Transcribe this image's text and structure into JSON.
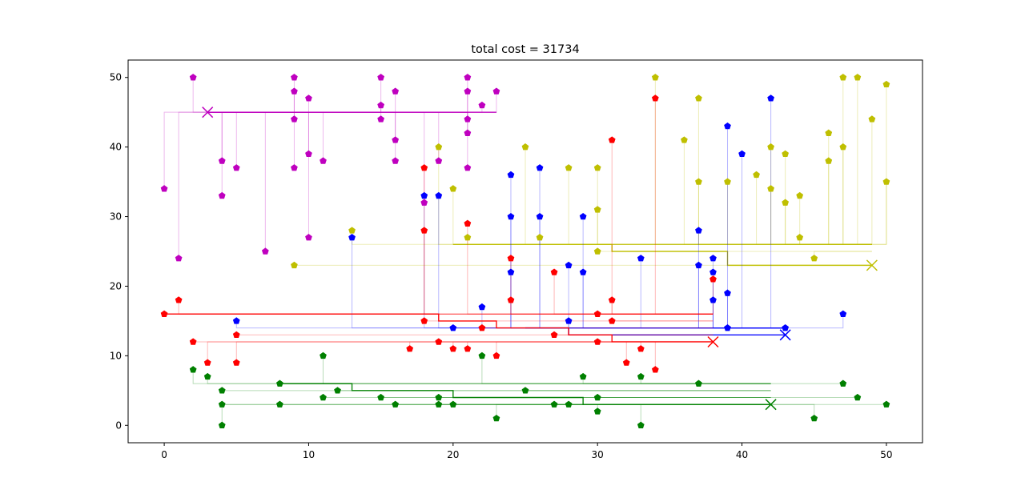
{
  "chart_data": {
    "type": "scatter",
    "title": "total cost = 31734",
    "xlabel": "",
    "ylabel": "",
    "xlim": [
      -2.5,
      52.5
    ],
    "ylim": [
      -2.5,
      52.5
    ],
    "xticks": [
      0,
      10,
      20,
      30,
      40,
      50
    ],
    "yticks": [
      0,
      10,
      20,
      30,
      40,
      50
    ],
    "grid": false,
    "series": [
      {
        "color": "#bf00bf",
        "hub": [
          3,
          45
        ],
        "points": [
          [
            0,
            34
          ],
          [
            1,
            24
          ],
          [
            2,
            50
          ],
          [
            4,
            38
          ],
          [
            4,
            33
          ],
          [
            5,
            37
          ],
          [
            7,
            25
          ],
          [
            9,
            50
          ],
          [
            9,
            48
          ],
          [
            9,
            44
          ],
          [
            9,
            37
          ],
          [
            10,
            47
          ],
          [
            10,
            39
          ],
          [
            10,
            27
          ],
          [
            11,
            38
          ],
          [
            15,
            50
          ],
          [
            15,
            46
          ],
          [
            15,
            44
          ],
          [
            16,
            48
          ],
          [
            16,
            41
          ],
          [
            16,
            38
          ],
          [
            18,
            32
          ],
          [
            19,
            38
          ],
          [
            21,
            50
          ],
          [
            21,
            48
          ],
          [
            21,
            44
          ],
          [
            21,
            42
          ],
          [
            21,
            37
          ],
          [
            22,
            46
          ],
          [
            23,
            48
          ]
        ],
        "trunk": [
          [
            3,
            45
          ],
          [
            23,
            45
          ]
        ]
      },
      {
        "color": "#bfbf00",
        "hub": [
          49,
          23
        ],
        "points": [
          [
            9,
            23
          ],
          [
            13,
            28
          ],
          [
            19,
            40
          ],
          [
            20,
            34
          ],
          [
            21,
            27
          ],
          [
            25,
            40
          ],
          [
            26,
            27
          ],
          [
            28,
            37
          ],
          [
            30,
            37
          ],
          [
            30,
            31
          ],
          [
            30,
            25
          ],
          [
            34,
            50
          ],
          [
            36,
            41
          ],
          [
            37,
            47
          ],
          [
            37,
            35
          ],
          [
            39,
            35
          ],
          [
            41,
            36
          ],
          [
            42,
            40
          ],
          [
            42,
            34
          ],
          [
            43,
            39
          ],
          [
            43,
            32
          ],
          [
            44,
            33
          ],
          [
            44,
            27
          ],
          [
            45,
            24
          ],
          [
            46,
            42
          ],
          [
            46,
            38
          ],
          [
            47,
            50
          ],
          [
            47,
            40
          ],
          [
            48,
            50
          ],
          [
            49,
            44
          ],
          [
            50,
            49
          ],
          [
            50,
            35
          ]
        ],
        "trunk": [
          [
            20,
            26
          ],
          [
            31,
            26
          ],
          [
            31,
            25
          ],
          [
            39,
            25
          ],
          [
            39,
            23
          ],
          [
            49,
            23
          ]
        ]
      },
      {
        "color": "#0000ff",
        "hub": [
          43,
          13
        ],
        "points": [
          [
            5,
            15
          ],
          [
            13,
            27
          ],
          [
            18,
            33
          ],
          [
            19,
            33
          ],
          [
            20,
            14
          ],
          [
            22,
            17
          ],
          [
            24,
            36
          ],
          [
            24,
            30
          ],
          [
            24,
            22
          ],
          [
            26,
            37
          ],
          [
            26,
            30
          ],
          [
            28,
            23
          ],
          [
            28,
            15
          ],
          [
            29,
            30
          ],
          [
            29,
            22
          ],
          [
            33,
            24
          ],
          [
            37,
            28
          ],
          [
            37,
            23
          ],
          [
            38,
            24
          ],
          [
            38,
            22
          ],
          [
            38,
            18
          ],
          [
            39,
            43
          ],
          [
            39,
            19
          ],
          [
            39,
            14
          ],
          [
            40,
            39
          ],
          [
            42,
            47
          ],
          [
            43,
            14
          ],
          [
            47,
            16
          ]
        ],
        "trunk": [
          [
            25,
            14
          ],
          [
            28,
            14
          ],
          [
            28,
            13
          ],
          [
            43,
            13
          ]
        ]
      },
      {
        "color": "#ff0000",
        "hub": [
          38,
          12
        ],
        "points": [
          [
            0,
            16
          ],
          [
            1,
            18
          ],
          [
            2,
            12
          ],
          [
            3,
            9
          ],
          [
            5,
            13
          ],
          [
            5,
            9
          ],
          [
            17,
            11
          ],
          [
            18,
            37
          ],
          [
            18,
            28
          ],
          [
            18,
            15
          ],
          [
            19,
            12
          ],
          [
            20,
            11
          ],
          [
            21,
            29
          ],
          [
            21,
            11
          ],
          [
            22,
            14
          ],
          [
            23,
            10
          ],
          [
            24,
            24
          ],
          [
            24,
            18
          ],
          [
            27,
            22
          ],
          [
            27,
            13
          ],
          [
            30,
            16
          ],
          [
            30,
            12
          ],
          [
            31,
            41
          ],
          [
            31,
            18
          ],
          [
            31,
            15
          ],
          [
            32,
            9
          ],
          [
            33,
            11
          ],
          [
            34,
            47
          ],
          [
            34,
            8
          ],
          [
            38,
            21
          ]
        ],
        "trunk": [
          [
            0,
            16
          ],
          [
            19,
            16
          ],
          [
            19,
            15
          ],
          [
            23,
            15
          ],
          [
            23,
            14
          ],
          [
            28,
            14
          ],
          [
            28,
            13
          ],
          [
            31,
            13
          ],
          [
            31,
            12
          ],
          [
            38,
            12
          ]
        ]
      },
      {
        "color": "#008000",
        "hub": [
          42,
          3
        ],
        "points": [
          [
            2,
            8
          ],
          [
            3,
            7
          ],
          [
            4,
            5
          ],
          [
            4,
            3
          ],
          [
            4,
            0
          ],
          [
            8,
            6
          ],
          [
            8,
            3
          ],
          [
            11,
            10
          ],
          [
            11,
            4
          ],
          [
            12,
            5
          ],
          [
            15,
            4
          ],
          [
            16,
            3
          ],
          [
            19,
            4
          ],
          [
            19,
            3
          ],
          [
            20,
            3
          ],
          [
            22,
            10
          ],
          [
            23,
            1
          ],
          [
            25,
            5
          ],
          [
            27,
            3
          ],
          [
            28,
            3
          ],
          [
            29,
            7
          ],
          [
            30,
            4
          ],
          [
            30,
            2
          ],
          [
            33,
            7
          ],
          [
            33,
            0
          ],
          [
            37,
            6
          ],
          [
            45,
            1
          ],
          [
            47,
            6
          ],
          [
            48,
            4
          ],
          [
            50,
            3
          ]
        ],
        "trunk": [
          [
            8,
            6
          ],
          [
            13,
            6
          ],
          [
            13,
            5
          ],
          [
            20,
            5
          ],
          [
            20,
            4
          ],
          [
            29,
            4
          ],
          [
            29,
            3
          ],
          [
            42,
            3
          ]
        ]
      }
    ]
  }
}
